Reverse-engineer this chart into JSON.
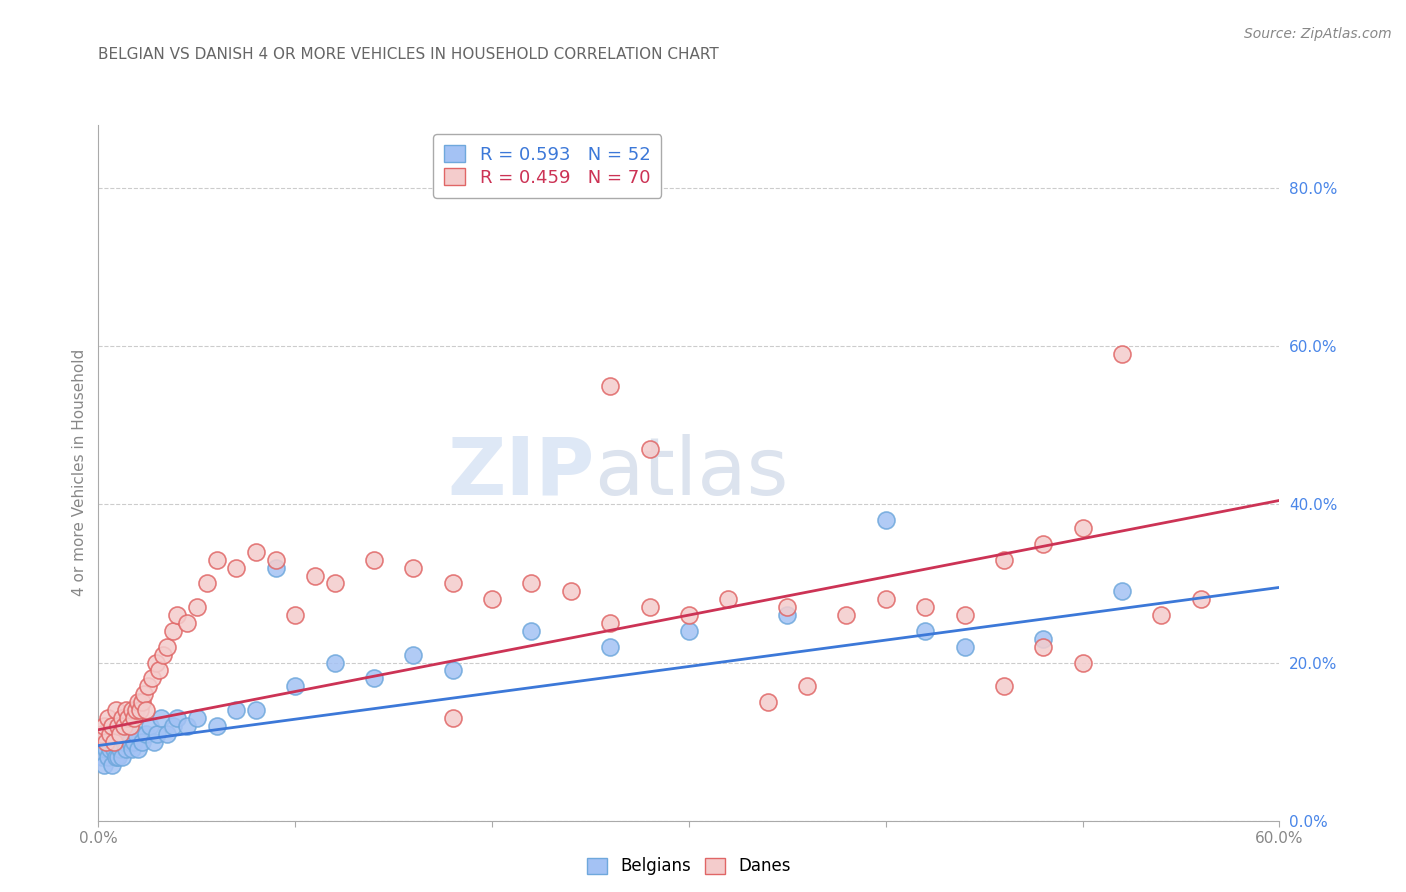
{
  "title": "BELGIAN VS DANISH 4 OR MORE VEHICLES IN HOUSEHOLD CORRELATION CHART",
  "source": "Source: ZipAtlas.com",
  "ylabel": "4 or more Vehicles in Household",
  "ytick_labels": [
    "0.0%",
    "20.0%",
    "40.0%",
    "60.0%",
    "80.0%"
  ],
  "ytick_values": [
    0.0,
    0.2,
    0.4,
    0.6,
    0.8
  ],
  "xlim": [
    0.0,
    0.6
  ],
  "ylim": [
    0.0,
    0.88
  ],
  "legend_r1": "R = 0.593   N = 52",
  "legend_r2": "R = 0.459   N = 70",
  "legend_labels": [
    "Belgians",
    "Danes"
  ],
  "watermark_zip": "ZIP",
  "watermark_atlas": "atlas",
  "belgians_x": [
    0.002,
    0.003,
    0.004,
    0.005,
    0.005,
    0.006,
    0.007,
    0.007,
    0.008,
    0.009,
    0.009,
    0.01,
    0.01,
    0.011,
    0.012,
    0.013,
    0.014,
    0.015,
    0.016,
    0.017,
    0.018,
    0.019,
    0.02,
    0.022,
    0.024,
    0.026,
    0.028,
    0.03,
    0.032,
    0.035,
    0.038,
    0.04,
    0.045,
    0.05,
    0.06,
    0.07,
    0.08,
    0.09,
    0.1,
    0.12,
    0.14,
    0.16,
    0.18,
    0.22,
    0.26,
    0.3,
    0.35,
    0.4,
    0.42,
    0.44,
    0.48,
    0.52
  ],
  "belgians_y": [
    0.08,
    0.07,
    0.09,
    0.08,
    0.1,
    0.09,
    0.07,
    0.1,
    0.09,
    0.08,
    0.11,
    0.08,
    0.1,
    0.09,
    0.08,
    0.1,
    0.09,
    0.11,
    0.1,
    0.09,
    0.1,
    0.11,
    0.09,
    0.1,
    0.11,
    0.12,
    0.1,
    0.11,
    0.13,
    0.11,
    0.12,
    0.13,
    0.12,
    0.13,
    0.12,
    0.14,
    0.14,
    0.32,
    0.17,
    0.2,
    0.18,
    0.21,
    0.19,
    0.24,
    0.22,
    0.24,
    0.26,
    0.38,
    0.24,
    0.22,
    0.23,
    0.29
  ],
  "danes_x": [
    0.002,
    0.003,
    0.004,
    0.005,
    0.006,
    0.007,
    0.008,
    0.009,
    0.01,
    0.011,
    0.012,
    0.013,
    0.014,
    0.015,
    0.016,
    0.017,
    0.018,
    0.019,
    0.02,
    0.021,
    0.022,
    0.023,
    0.024,
    0.025,
    0.027,
    0.029,
    0.031,
    0.033,
    0.035,
    0.038,
    0.04,
    0.045,
    0.05,
    0.055,
    0.06,
    0.07,
    0.08,
    0.09,
    0.1,
    0.11,
    0.12,
    0.14,
    0.16,
    0.18,
    0.2,
    0.22,
    0.24,
    0.26,
    0.28,
    0.3,
    0.32,
    0.35,
    0.38,
    0.4,
    0.42,
    0.44,
    0.46,
    0.48,
    0.5,
    0.52,
    0.54,
    0.56,
    0.34,
    0.36,
    0.26,
    0.28,
    0.18,
    0.46,
    0.48,
    0.5
  ],
  "danes_y": [
    0.11,
    0.12,
    0.1,
    0.13,
    0.11,
    0.12,
    0.1,
    0.14,
    0.12,
    0.11,
    0.13,
    0.12,
    0.14,
    0.13,
    0.12,
    0.14,
    0.13,
    0.14,
    0.15,
    0.14,
    0.15,
    0.16,
    0.14,
    0.17,
    0.18,
    0.2,
    0.19,
    0.21,
    0.22,
    0.24,
    0.26,
    0.25,
    0.27,
    0.3,
    0.33,
    0.32,
    0.34,
    0.33,
    0.26,
    0.31,
    0.3,
    0.33,
    0.32,
    0.3,
    0.28,
    0.3,
    0.29,
    0.25,
    0.27,
    0.26,
    0.28,
    0.27,
    0.26,
    0.28,
    0.27,
    0.26,
    0.17,
    0.22,
    0.2,
    0.59,
    0.26,
    0.28,
    0.15,
    0.17,
    0.55,
    0.47,
    0.13,
    0.33,
    0.35,
    0.37
  ],
  "blue_line_x": [
    0.0,
    0.6
  ],
  "blue_line_y": [
    0.095,
    0.295
  ],
  "pink_line_x": [
    0.0,
    0.6
  ],
  "pink_line_y": [
    0.115,
    0.405
  ],
  "dot_color_belgian": "#a4c2f4",
  "dot_edge_belgian": "#6fa8dc",
  "dot_color_danish": "#f4cccc",
  "dot_edge_danish": "#e06666",
  "line_color_belgian": "#3c78d8",
  "line_color_danish": "#cc3355",
  "legend_text_blue": "#3c78d8",
  "legend_text_pink": "#cc3355",
  "ytick_color": "#4a86e8",
  "background_color": "#ffffff",
  "grid_color": "#cccccc",
  "title_color": "#666666",
  "source_color": "#888888"
}
